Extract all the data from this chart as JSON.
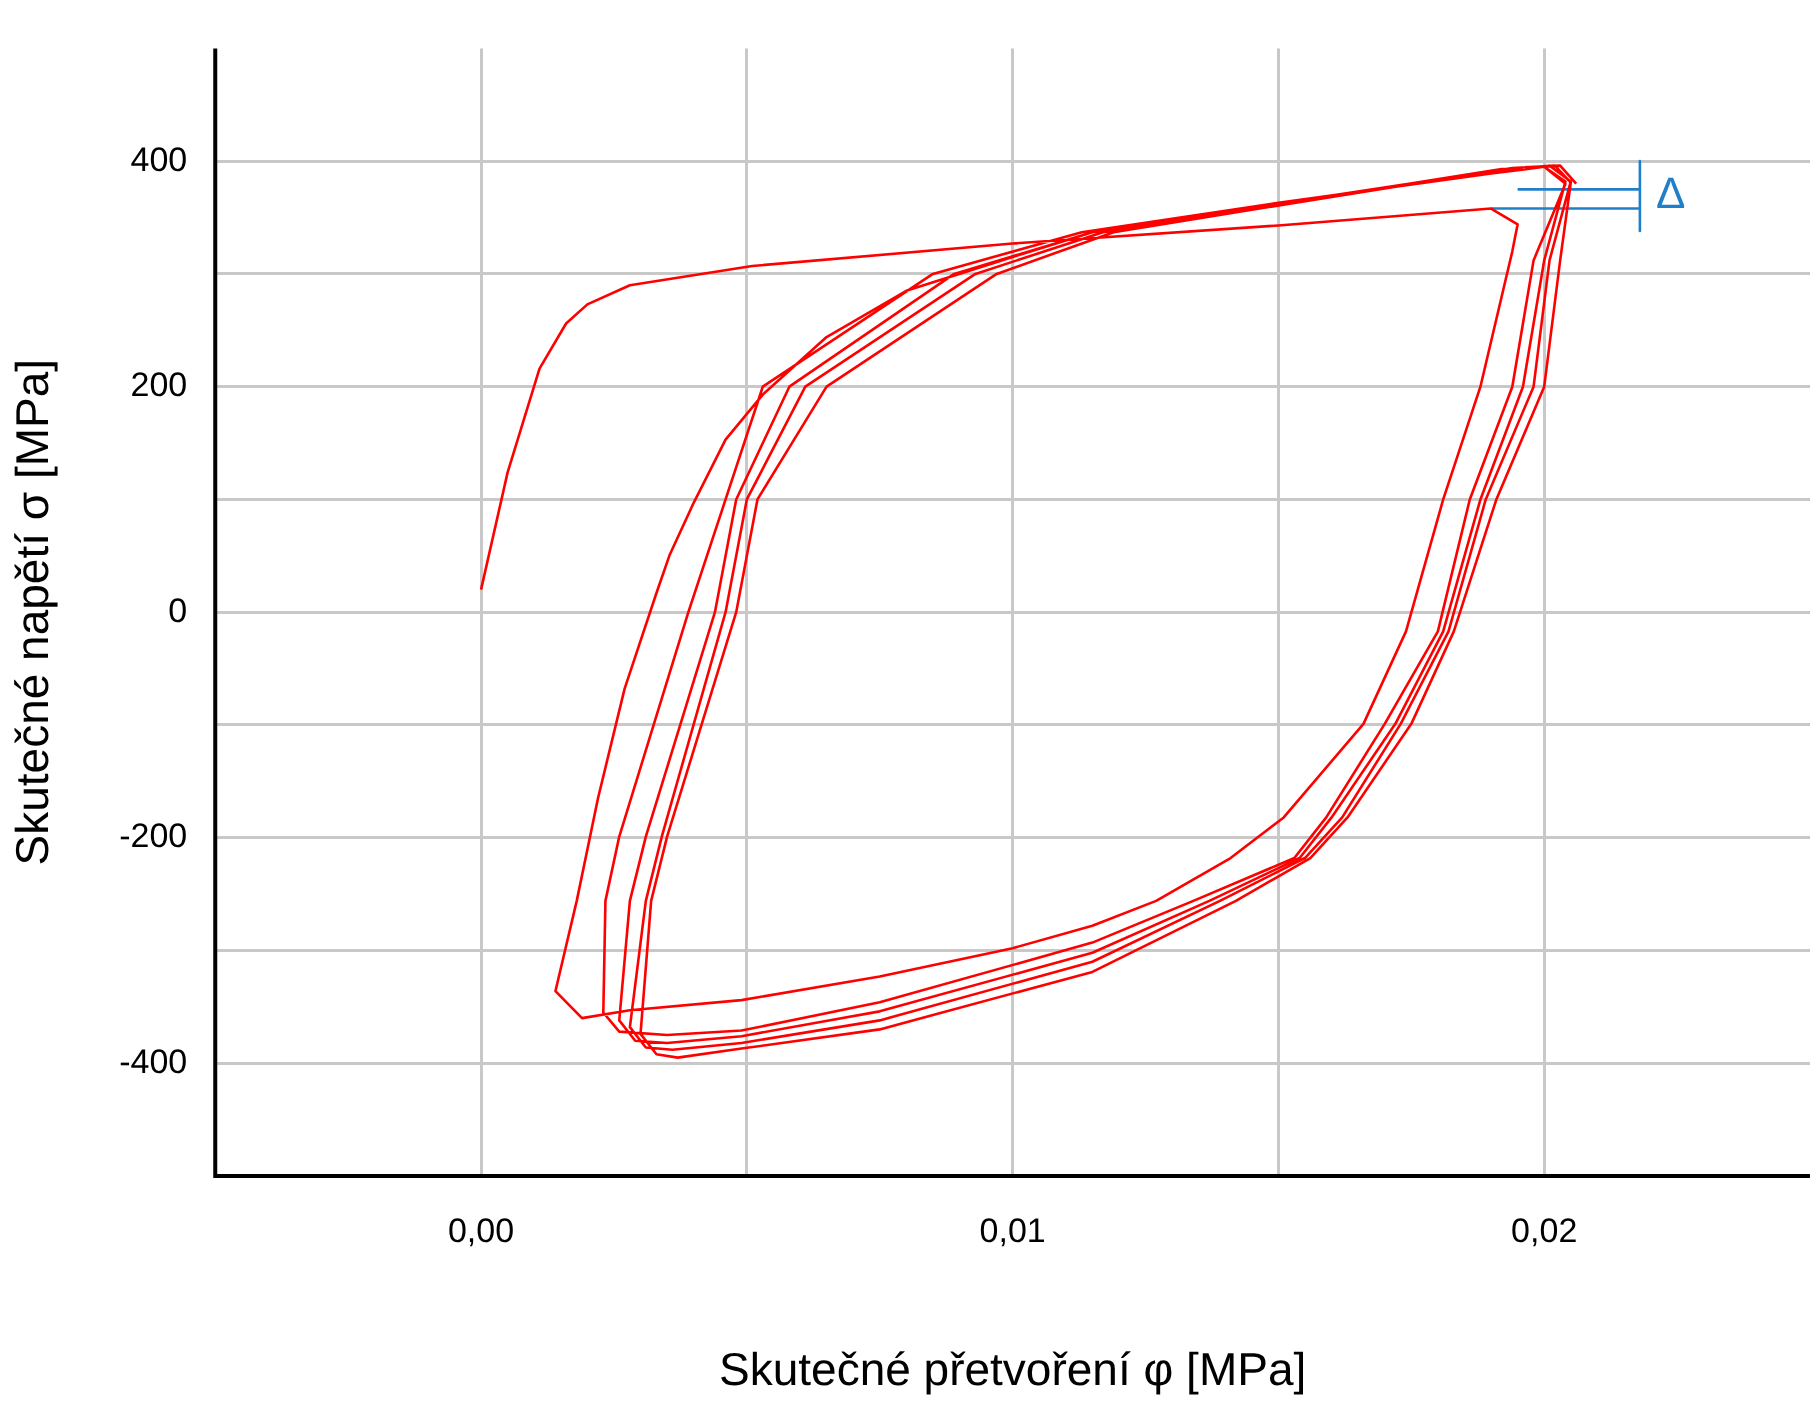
{
  "chart_data": {
    "type": "line",
    "xlabel": "Skutečné přetvoření φ [MPa]",
    "ylabel": "Skutečné napětí σ [MPa]",
    "xlim": [
      -0.005,
      0.025
    ],
    "ylim": [
      -500,
      500
    ],
    "xticks": [
      {
        "value": 0,
        "label": "0,00"
      },
      {
        "value": 0.005,
        "label": null
      },
      {
        "value": 0.01,
        "label": "0,01"
      },
      {
        "value": 0.015,
        "label": null
      },
      {
        "value": 0.02,
        "label": "0,02"
      }
    ],
    "yticks": [
      {
        "value": -400,
        "label": "-400"
      },
      {
        "value": -300,
        "label": null
      },
      {
        "value": -200,
        "label": "-200"
      },
      {
        "value": -100,
        "label": null
      },
      0,
      {
        "value": 100,
        "label": null
      },
      200,
      {
        "value": 300,
        "label": null
      },
      400
    ],
    "grid": true,
    "marker": "none",
    "line_style": "solid",
    "series": [
      {
        "color": "#ff0000",
        "x": [
          0,
          0.0005,
          0.0011,
          0.0016,
          0.002,
          0.0028,
          0.0051,
          0.01,
          0.015,
          0.019,
          0.0195,
          0.0194,
          0.0188,
          0.0181,
          0.0174,
          0.0166,
          0.0151,
          0.0141,
          0.0127,
          0.0115,
          0.01,
          0.0075,
          0.0049,
          0.0028,
          0.0019,
          0.0014,
          0.0018,
          0.0022,
          0.0027,
          0.0033,
          0.00355,
          0.004,
          0.0046,
          0.0053,
          0.0065,
          0.008,
          0.01,
          0.0115,
          0.015,
          0.019,
          0.02,
          0.0204,
          0.0198,
          0.0194,
          0.0186,
          0.018,
          0.017,
          0.0159,
          0.0153,
          0.0134,
          0.0115,
          0.0075,
          0.0049,
          0.0035,
          0.0026,
          0.0023,
          0.00234,
          0.0026,
          0.0039,
          0.0046,
          0.0053,
          0.0085,
          0.0113,
          0.015,
          0.019,
          0.02,
          0.0204,
          0.02,
          0.0196,
          0.0188,
          0.0181,
          0.0172,
          0.016,
          0.0154,
          0.0137,
          0.0115,
          0.0075,
          0.0049,
          0.0035,
          0.0029,
          0.0026,
          0.0028,
          0.0031,
          0.0044,
          0.0048,
          0.0058,
          0.0089,
          0.0115,
          0.0151,
          0.019,
          0.0201,
          0.0205,
          0.0201,
          0.0198,
          0.0189,
          0.0182,
          0.0173,
          0.0162,
          0.0155,
          0.0139,
          0.0115,
          0.0075,
          0.0049,
          0.0036,
          0.0031,
          0.0028,
          0.0031,
          0.0034,
          0.0046,
          0.005,
          0.0061,
          0.0093,
          0.0117,
          0.0152,
          0.0192,
          0.0202,
          0.0205,
          0.0203,
          0.02,
          0.0191,
          0.0183,
          0.0175,
          0.0163,
          0.0156,
          0.0142,
          0.0115,
          0.0075,
          0.0049,
          0.0037,
          0.0033,
          0.003,
          0.0032,
          0.0035,
          0.0048,
          0.0052,
          0.0065,
          0.0097,
          0.0119,
          0.0153,
          0.0194,
          0.0203,
          0.0206
        ],
        "values": [
          20,
          124,
          216,
          256,
          273,
          290,
          307,
          327,
          343,
          358,
          344,
          320,
          200,
          100,
          -17,
          -99,
          -182,
          -218,
          -256,
          -278,
          -298,
          -323,
          -344,
          -353,
          -360,
          -336,
          -256,
          -165,
          -68,
          17,
          51,
          97,
          153,
          193,
          244,
          285,
          315,
          337,
          363,
          389,
          395,
          380,
          312,
          200,
          100,
          -17,
          -99,
          -182,
          -218,
          -256,
          -293,
          -346,
          -371,
          -375,
          -372,
          -355,
          -256,
          -199,
          0,
          100,
          200,
          300,
          337,
          363,
          389,
          395,
          382,
          312,
          200,
          100,
          -17,
          -99,
          -182,
          -218,
          -256,
          -302,
          -354,
          -376,
          -382,
          -380,
          -362,
          -256,
          -199,
          0,
          100,
          200,
          300,
          337,
          363,
          391,
          396,
          382,
          312,
          200,
          100,
          -17,
          -99,
          -182,
          -218,
          -256,
          -310,
          -362,
          -382,
          -388,
          -386,
          -368,
          -256,
          -199,
          0,
          100,
          200,
          300,
          337,
          363,
          393,
          396,
          381,
          312,
          200,
          100,
          -17,
          -99,
          -182,
          -218,
          -256,
          -319,
          -370,
          -387,
          -395,
          -392,
          -374,
          -256,
          -199,
          0,
          100,
          200,
          300,
          337,
          363,
          394,
          396,
          380
        ]
      },
      {
        "color": "#1f7fc8",
        "x": [
          0.0195,
          0.0218
        ],
        "values": [
          375,
          375
        ]
      },
      {
        "color": "#1f7fc8",
        "x": [
          0.019,
          0.0218
        ],
        "values": [
          358,
          358
        ]
      },
      {
        "color": "#1f7fc8",
        "x": [
          0.0218,
          0.0218
        ],
        "values": [
          400,
          338
        ]
      }
    ],
    "annotations": [
      "Δ"
    ]
  }
}
